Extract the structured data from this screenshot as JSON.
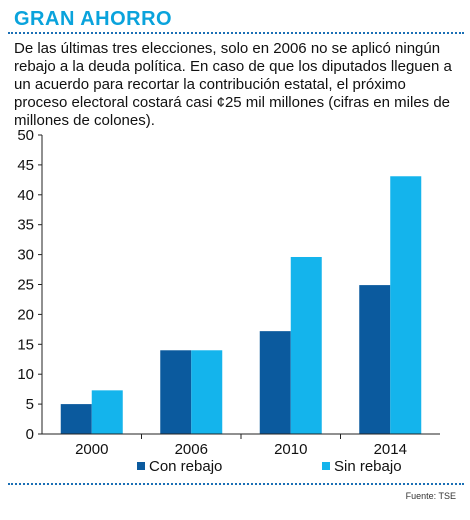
{
  "header": {
    "title": "GRAN AHORRO",
    "intro": "De las últimas tres elecciones, solo en 2006 no se aplicó ningún rebajo a la deuda política. En caso de que los diputados lleguen a un acuerdo para recortar la contribución estatal, el próximo proceso electoral costará casi ¢25 mil millones (cifras en miles de millones de colones)."
  },
  "footer": {
    "source": "Fuente: TSE"
  },
  "chart_data": {
    "type": "bar",
    "categories": [
      "2000",
      "2006",
      "2010",
      "2014"
    ],
    "series": [
      {
        "name": "Con rebajo",
        "values": [
          5,
          14,
          17.2,
          24.9
        ],
        "color": "#0b5a9e"
      },
      {
        "name": "Sin rebajo",
        "values": [
          7.3,
          14,
          29.6,
          43.1
        ],
        "color": "#14b4ec"
      }
    ],
    "ylim": [
      0,
      50
    ],
    "yticks": [
      0,
      5,
      10,
      15,
      20,
      25,
      30,
      35,
      40,
      45,
      50
    ],
    "grid": false,
    "legend": "bottom"
  }
}
